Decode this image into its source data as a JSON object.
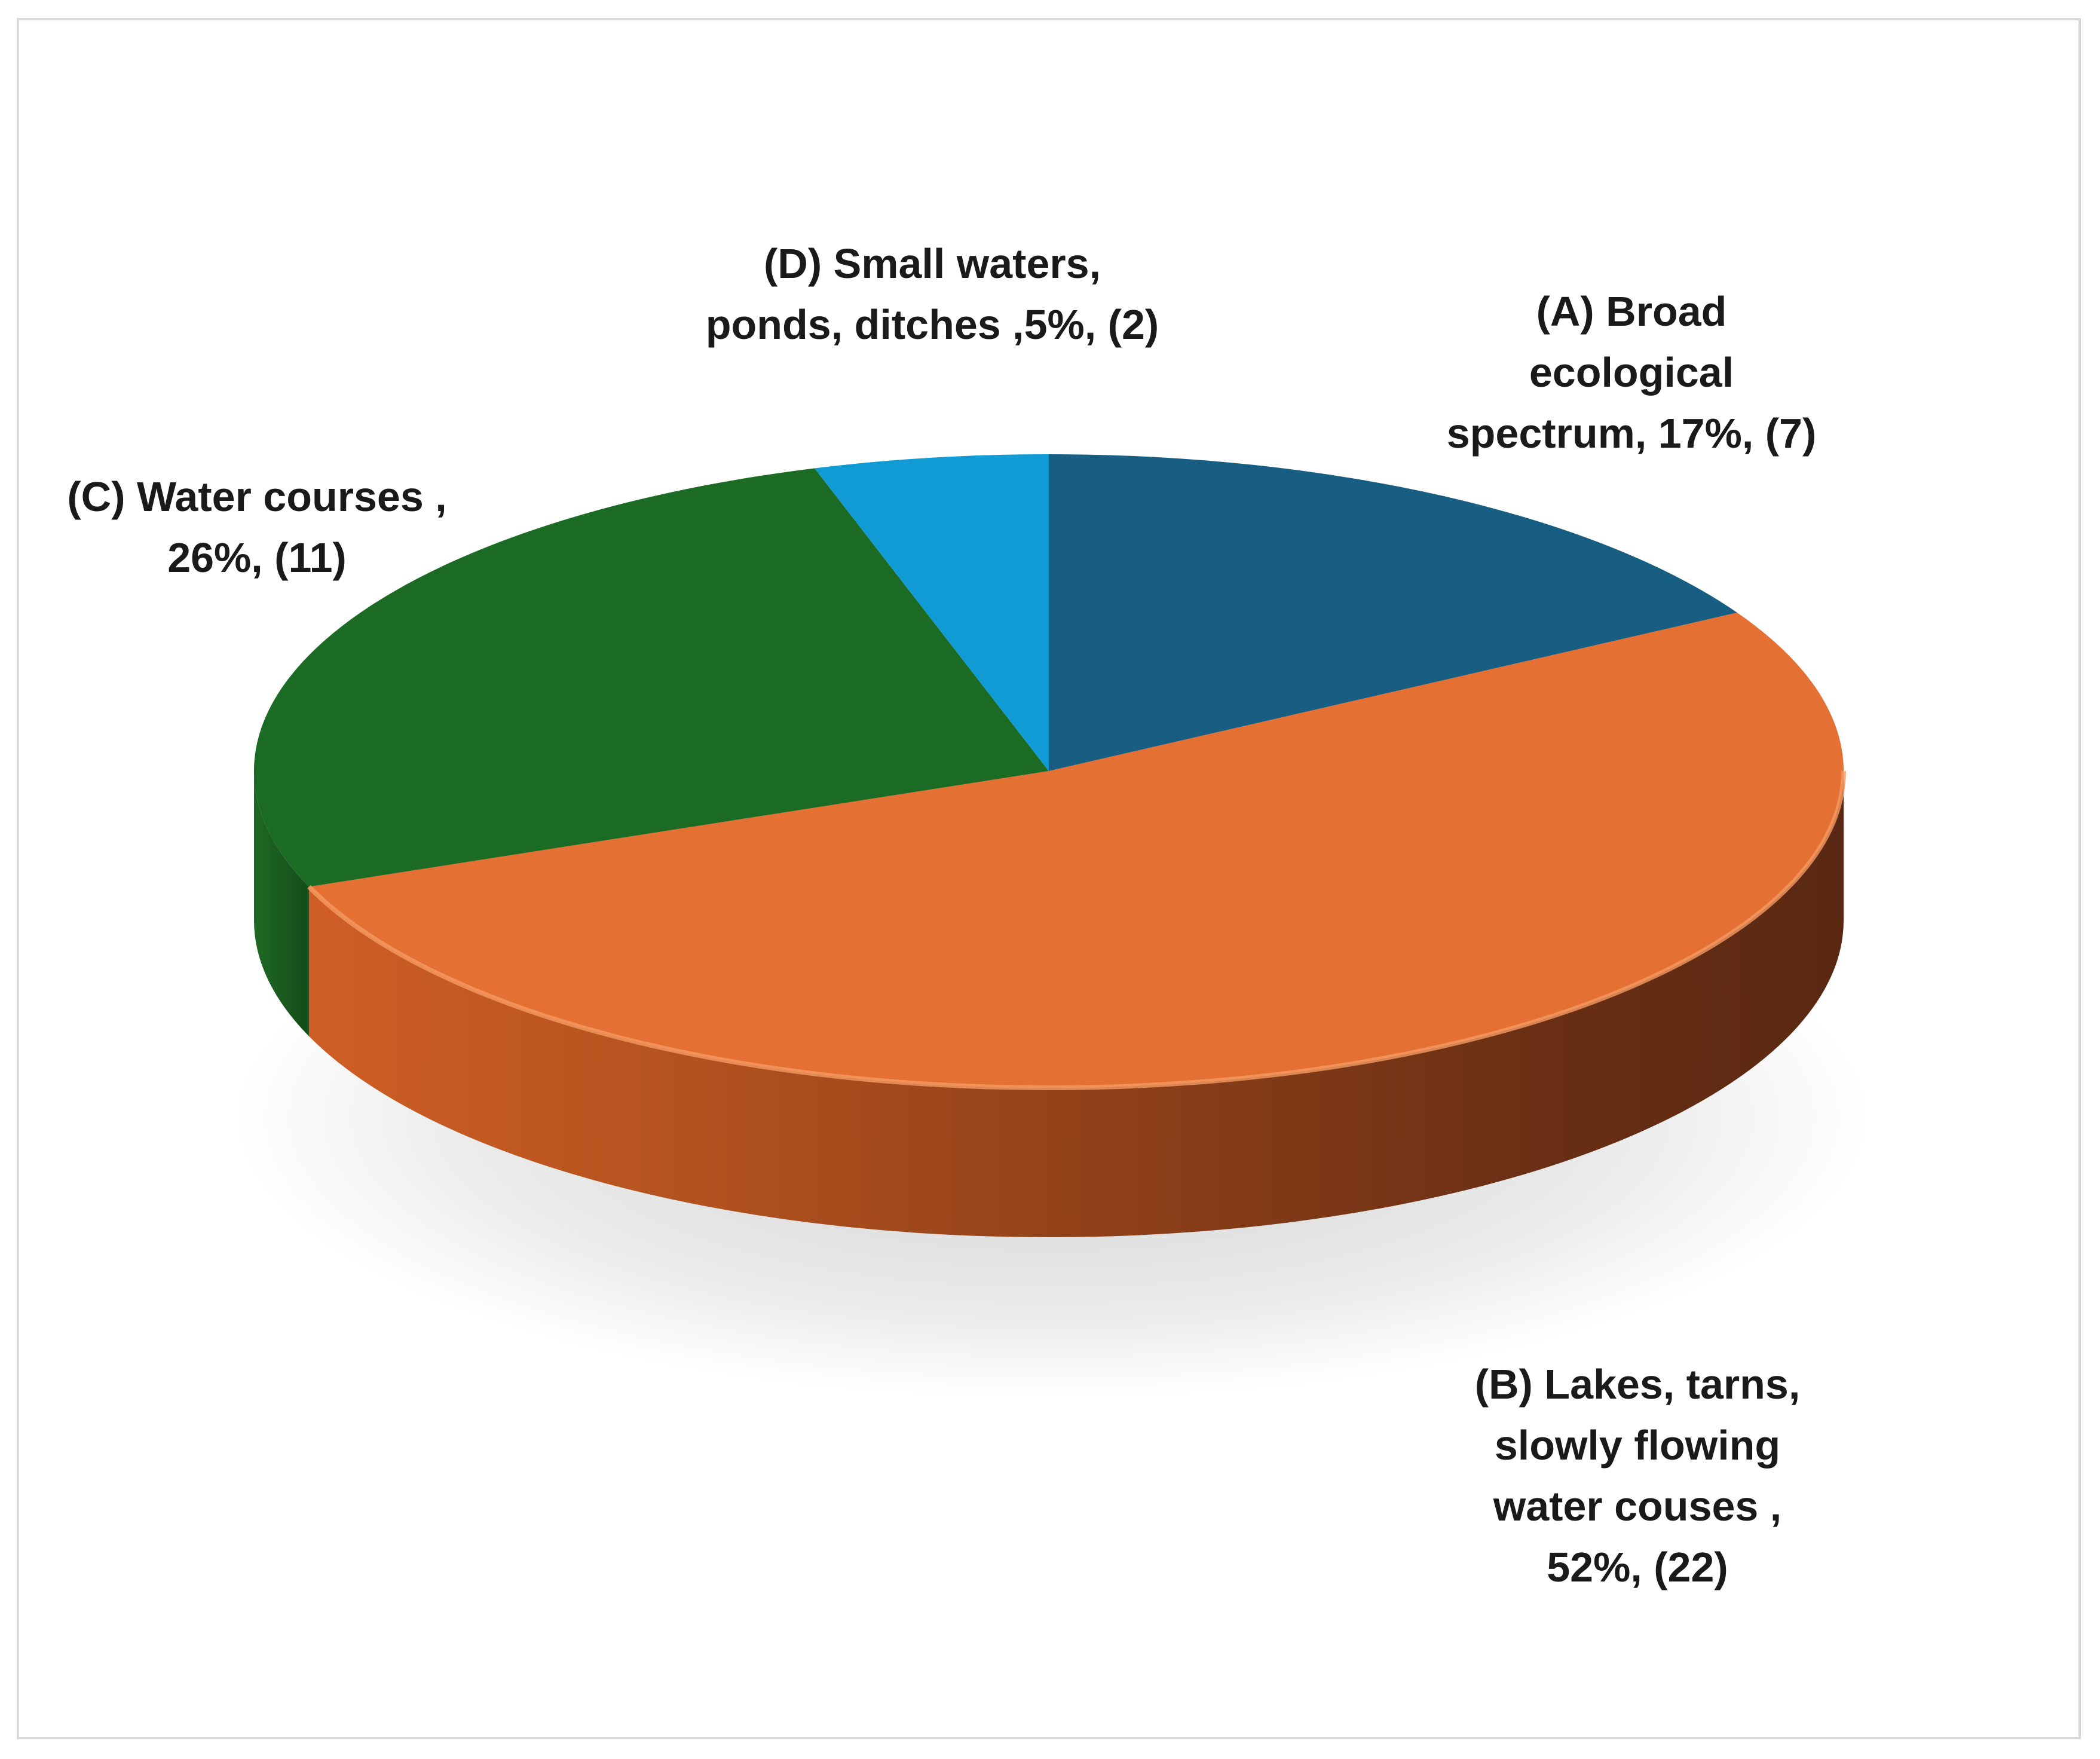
{
  "chart_data": {
    "type": "pie",
    "title": "",
    "slices": [
      {
        "id": "A",
        "label_lines": [
          "(A) Broad",
          "ecological",
          "spectrum, 17%, (7)"
        ],
        "count": 7,
        "percent": 17,
        "color": "#175e82"
      },
      {
        "id": "B",
        "label_lines": [
          "(B) Lakes, tarns,",
          "slowly flowing",
          "water couses ,",
          "52%, (22)"
        ],
        "count": 22,
        "percent": 52,
        "color": "#e47033"
      },
      {
        "id": "C",
        "label_lines": [
          "(C) Water courses ,",
          "26%, (11)"
        ],
        "count": 11,
        "percent": 26,
        "color": "#1c6b24"
      },
      {
        "id": "D",
        "label_lines": [
          "(D) Small waters,",
          "ponds, ditches ,5%, (2)"
        ],
        "count": 2,
        "percent": 5,
        "color": "#119bd5"
      }
    ],
    "legend": "none",
    "style": "3d"
  }
}
